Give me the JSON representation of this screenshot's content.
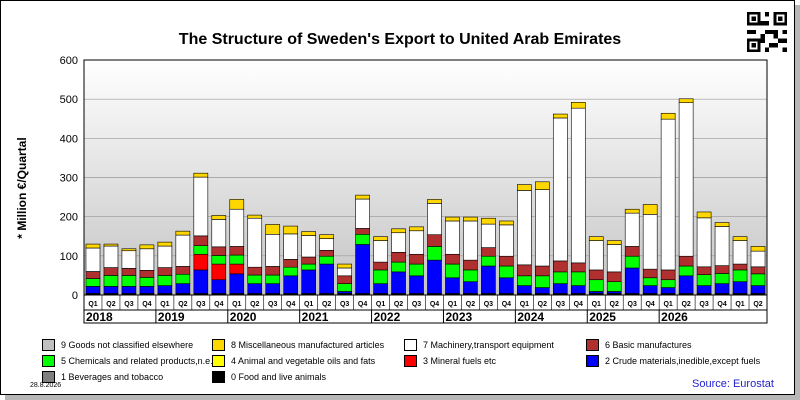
{
  "source_note": "Source: Eurostat",
  "date_note": "28.8.2026",
  "qr_icon": "qr-code-icon",
  "chart_data": {
    "type": "bar",
    "stacked": true,
    "title": "The Structure of Sweden's Export to United Arab Emirates",
    "ylabel": "* Million €/Quartal",
    "ylim": [
      0,
      600
    ],
    "yticks": [
      0,
      100,
      200,
      300,
      400,
      500,
      600
    ],
    "grid": true,
    "legend_position": "bottom",
    "categories": [
      "Q1",
      "Q2",
      "Q3",
      "Q4",
      "Q1",
      "Q2",
      "Q3",
      "Q4",
      "Q1",
      "Q2",
      "Q3",
      "Q4",
      "Q1",
      "Q2",
      "Q3",
      "Q4",
      "Q1",
      "Q2",
      "Q3",
      "Q4",
      "Q1",
      "Q2",
      "Q3",
      "Q4",
      "Q1",
      "Q2",
      "Q3",
      "Q4",
      "Q1",
      "Q2",
      "Q3",
      "Q4",
      "Q1",
      "Q2",
      "Q3",
      "Q4",
      "Q1",
      "Q2"
    ],
    "years": [
      {
        "label": "2018",
        "quarters": 4
      },
      {
        "label": "2019",
        "quarters": 4
      },
      {
        "label": "2020",
        "quarters": 4
      },
      {
        "label": "2021",
        "quarters": 4
      },
      {
        "label": "2022",
        "quarters": 4
      },
      {
        "label": "2023",
        "quarters": 4
      },
      {
        "label": "2024",
        "quarters": 4
      },
      {
        "label": "2025",
        "quarters": 4
      },
      {
        "label": "2026",
        "quarters": 2
      }
    ],
    "series": [
      {
        "name": "0 Food and live animals",
        "color": "#000000",
        "values": [
          3,
          3,
          3,
          3,
          3,
          3,
          3,
          3,
          3,
          3,
          3,
          3,
          3,
          3,
          3,
          3,
          3,
          3,
          3,
          3,
          3,
          3,
          3,
          3,
          3,
          3,
          3,
          3,
          3,
          3,
          3,
          3,
          3,
          3,
          3,
          3,
          3,
          3
        ]
      },
      {
        "name": "1 Beverages and tobacco",
        "color": "#7f7f7f",
        "values": [
          1,
          1,
          1,
          1,
          1,
          1,
          1,
          1,
          1,
          1,
          1,
          1,
          1,
          1,
          1,
          1,
          1,
          1,
          1,
          1,
          1,
          1,
          1,
          1,
          1,
          1,
          1,
          1,
          1,
          1,
          1,
          1,
          1,
          1,
          1,
          1,
          1,
          1
        ]
      },
      {
        "name": "2 Crude materials,inedible,except fuels",
        "color": "#0000ff",
        "values": [
          18,
          18,
          18,
          18,
          20,
          25,
          60,
          35,
          50,
          25,
          25,
          45,
          60,
          75,
          5,
          125,
          25,
          55,
          45,
          85,
          40,
          30,
          70,
          40,
          20,
          15,
          25,
          20,
          5,
          5,
          65,
          20,
          15,
          45,
          20,
          25,
          30,
          20
        ]
      },
      {
        "name": "3 Mineral fuels etc",
        "color": "#ff0000",
        "values": [
          0,
          0,
          0,
          0,
          0,
          0,
          40,
          40,
          25,
          0,
          0,
          0,
          0,
          0,
          0,
          0,
          0,
          0,
          0,
          0,
          0,
          0,
          0,
          0,
          0,
          0,
          0,
          0,
          0,
          0,
          0,
          0,
          0,
          0,
          0,
          0,
          0,
          0
        ]
      },
      {
        "name": "4 Animal and vegetable oils and fats",
        "color": "#ffff00",
        "values": [
          0,
          0,
          0,
          0,
          0,
          0,
          0,
          0,
          0,
          0,
          0,
          0,
          0,
          0,
          0,
          0,
          0,
          0,
          0,
          0,
          0,
          0,
          0,
          0,
          0,
          0,
          0,
          0,
          0,
          0,
          0,
          0,
          0,
          0,
          0,
          0,
          0,
          0
        ]
      },
      {
        "name": "5 Chemicals and related products,n.e.s.",
        "color": "#00ff00",
        "values": [
          20,
          28,
          28,
          23,
          26,
          24,
          22,
          22,
          23,
          22,
          22,
          22,
          15,
          20,
          20,
          26,
          35,
          25,
          30,
          35,
          35,
          30,
          25,
          30,
          25,
          30,
          30,
          35,
          30,
          25,
          30,
          20,
          20,
          25,
          28,
          26,
          30,
          30
        ]
      },
      {
        "name": "6 Basic manufactures",
        "color": "#b03030",
        "values": [
          18,
          20,
          18,
          18,
          20,
          20,
          25,
          22,
          22,
          20,
          22,
          20,
          18,
          15,
          20,
          15,
          20,
          25,
          25,
          30,
          25,
          25,
          22,
          25,
          28,
          25,
          28,
          23,
          25,
          25,
          25,
          22,
          25,
          25,
          20,
          20,
          15,
          18
        ]
      },
      {
        "name": "7 Machinery,transport equipment",
        "color": "#ffffff",
        "values": [
          60,
          55,
          45,
          55,
          55,
          80,
          150,
          70,
          95,
          125,
          82,
          65,
          55,
          30,
          20,
          75,
          55,
          50,
          60,
          80,
          85,
          100,
          60,
          80,
          190,
          195,
          365,
          395,
          75,
          70,
          85,
          140,
          385,
          392,
          125,
          100,
          60,
          40
        ]
      },
      {
        "name": "8 Miscellaneous manufactured articles",
        "color": "#ffd700",
        "values": [
          10,
          5,
          5,
          10,
          10,
          10,
          10,
          10,
          25,
          8,
          25,
          20,
          10,
          10,
          10,
          10,
          10,
          10,
          10,
          10,
          10,
          10,
          15,
          10,
          15,
          20,
          10,
          15,
          10,
          10,
          10,
          25,
          15,
          10,
          15,
          10,
          10,
          12
        ]
      },
      {
        "name": "9 Goods not classified elsewhere",
        "color": "#c0c0c0",
        "values": [
          0,
          0,
          0,
          0,
          0,
          0,
          0,
          0,
          0,
          0,
          0,
          0,
          0,
          0,
          0,
          0,
          0,
          0,
          0,
          0,
          0,
          0,
          0,
          0,
          0,
          0,
          0,
          0,
          0,
          0,
          0,
          0,
          0,
          0,
          0,
          0,
          0,
          0
        ]
      }
    ],
    "legend_order": [
      9,
      8,
      7,
      6,
      5,
      4,
      3,
      2,
      1,
      0
    ]
  }
}
